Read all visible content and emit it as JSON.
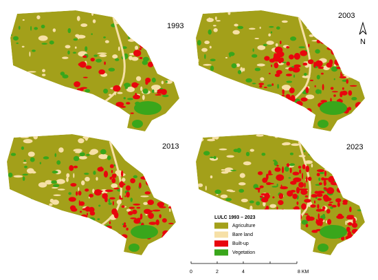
{
  "panels": [
    {
      "year": "1993"
    },
    {
      "year": "2003"
    },
    {
      "year": "2013"
    },
    {
      "year": "2023"
    }
  ],
  "north_arrow": {
    "label": "N"
  },
  "legend": {
    "title": "LULC 1993 – 2023",
    "items": [
      {
        "label": "Agriculture",
        "color": "#a3a01a"
      },
      {
        "label": "Bare land",
        "color": "#f6e0a6"
      },
      {
        "label": "Built-up",
        "color": "#e8060d"
      },
      {
        "label": "Vegetation",
        "color": "#39a61b"
      }
    ]
  },
  "scale_bar": {
    "labels": [
      "0",
      "2",
      "4",
      "8 KM"
    ]
  }
}
